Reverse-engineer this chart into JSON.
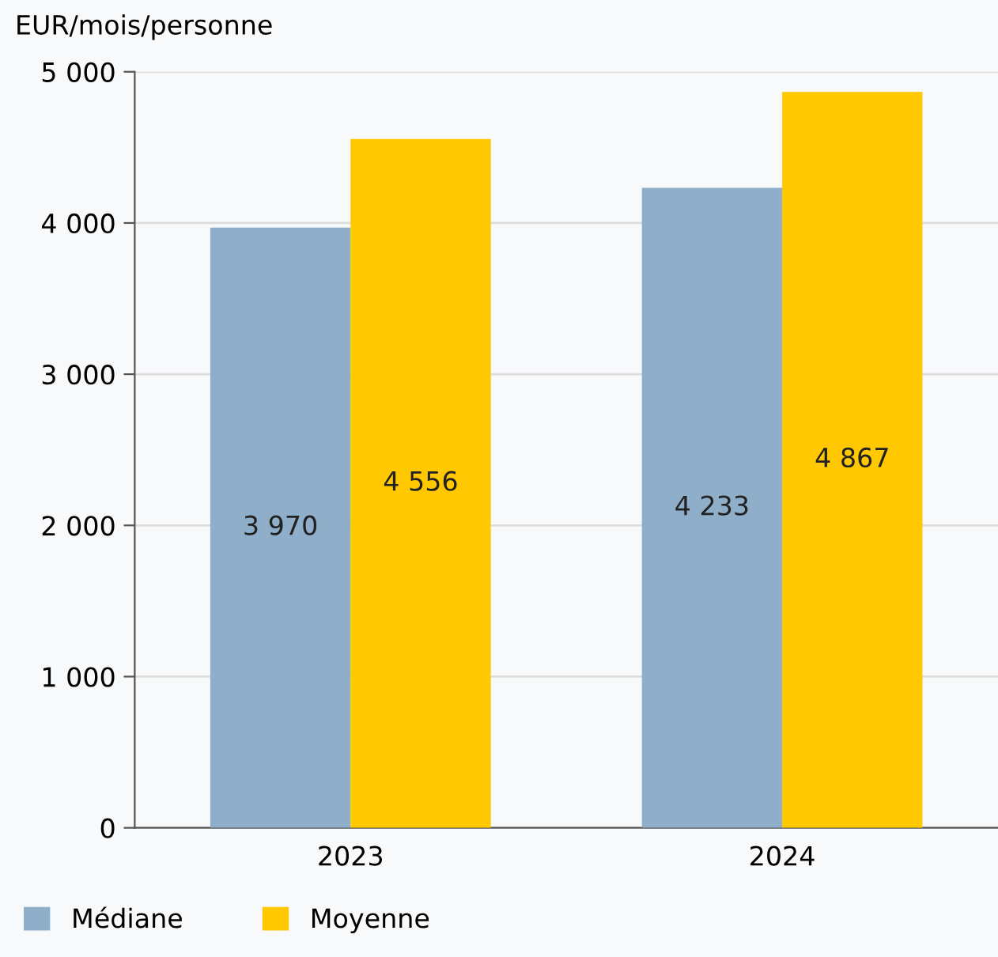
{
  "chart_data": {
    "type": "bar",
    "ylabel": "EUR/mois/personne",
    "categories": [
      "2023",
      "2024"
    ],
    "series": [
      {
        "name": "Médiane",
        "color": "#8eaec9",
        "values": [
          3970,
          4233
        ],
        "value_labels": [
          "3 970",
          "4 233"
        ]
      },
      {
        "name": "Moyenne",
        "color": "#ffc800",
        "values": [
          4556,
          4867
        ],
        "value_labels": [
          "4 556",
          "4 867"
        ]
      }
    ],
    "ylim": [
      0,
      5000
    ],
    "yticks": [
      {
        "value": 0,
        "label": "0"
      },
      {
        "value": 1000,
        "label": "1 000"
      },
      {
        "value": 2000,
        "label": "2 000"
      },
      {
        "value": 3000,
        "label": "3 000"
      },
      {
        "value": 4000,
        "label": "4 000"
      },
      {
        "value": 5000,
        "label": "5 000"
      }
    ],
    "grid": "y",
    "legend": "bottom left"
  }
}
